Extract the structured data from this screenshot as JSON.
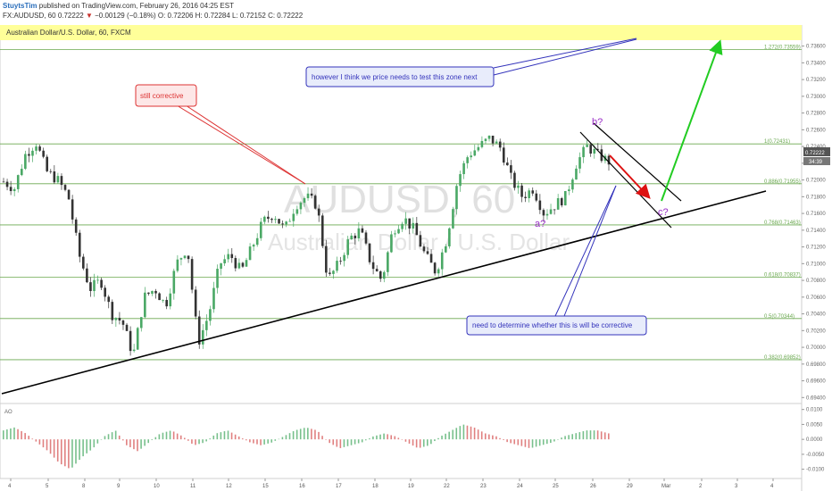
{
  "header": {
    "author": "StuytsTim",
    "published": "published on TradingView.com, February 26, 2016 04:25 EST",
    "symbol": "FX:AUDUSD, 60",
    "last": "0.72222",
    "arrow": "▼",
    "change": "−0.00129 (−0.18%)",
    "ohlc": "O: 0.72206  H: 0.72284  L: 0.72152  C: 0.72222"
  },
  "instrument_title": "Australian Dollar/U.S. Dollar, 60, FXCM",
  "watermark": {
    "line1": "AUDUSD, 60",
    "line2": "Australian Dollar / U.S. Dollar"
  },
  "price_tag": {
    "value": "0.72222",
    "time": "34:39"
  },
  "oscillator_label": "AO",
  "annotations": {
    "corrective": "still corrective",
    "test_zone": "however I think we price needs to test this zone next",
    "determine": "need to determine whether this is will be corrective"
  },
  "waves": {
    "a": "a?",
    "b": "b?",
    "c": "c?"
  },
  "colors": {
    "fib": "#6aa84f",
    "zone": "#ffff99",
    "trend": "#000000",
    "arrow_green": "#22cc22",
    "arrow_red": "#dd1111",
    "callout_blue": "#3333bb",
    "callout_red": "#dd3333",
    "candle_up": "#4aa865",
    "candle_down": "#333333",
    "osc_up": "#78c08c",
    "osc_down": "#e08080"
  },
  "chart_data": {
    "type": "candlestick",
    "title": "Australian Dollar/U.S. Dollar, 60, FXCM",
    "y_range": [
      0.6935,
      0.7366
    ],
    "y_ticks": [
      "0.73600",
      "0.73400",
      "0.73200",
      "0.73000",
      "0.72800",
      "0.72600",
      "0.72400",
      "0.72200",
      "0.72000",
      "0.71800",
      "0.71600",
      "0.71400",
      "0.71200",
      "0.71000",
      "0.70800",
      "0.70600",
      "0.70400",
      "0.70200",
      "0.70000",
      "0.69800",
      "0.69600",
      "0.69400"
    ],
    "x_ticks": [
      "4",
      "5",
      "8",
      "9",
      "10",
      "11",
      "12",
      "15",
      "16",
      "17",
      "18",
      "19",
      "22",
      "23",
      "24",
      "25",
      "26",
      "29",
      "Mar",
      "2",
      "3",
      "4"
    ],
    "fib_levels": [
      {
        "label": "1.272(0.73559)",
        "value": 0.73559
      },
      {
        "label": "1(0.72431)",
        "value": 0.72431
      },
      {
        "label": "0.886(0.71955)",
        "value": 0.71955
      },
      {
        "label": "0.768(0.71463)",
        "value": 0.71463
      },
      {
        "label": "0.618(0.70837)",
        "value": 0.70837
      },
      {
        "label": "0.5(0.70344)",
        "value": 0.70344
      },
      {
        "label": "0.382(0.69852)",
        "value": 0.69852
      }
    ],
    "price_path": [
      0.7198,
      0.719,
      0.723,
      0.7245,
      0.721,
      0.72,
      0.718,
      0.711,
      0.707,
      0.708,
      0.704,
      0.703,
      0.699,
      0.706,
      0.707,
      0.705,
      0.71,
      0.712,
      0.7005,
      0.704,
      0.71,
      0.711,
      0.709,
      0.712,
      0.715,
      0.716,
      0.714,
      0.717,
      0.718,
      0.717,
      0.708,
      0.71,
      0.713,
      0.714,
      0.71,
      0.708,
      0.714,
      0.7155,
      0.714,
      0.711,
      0.709,
      0.713,
      0.72,
      0.723,
      0.724,
      0.725,
      0.7238,
      0.72,
      0.718,
      0.719,
      0.716,
      0.717,
      0.718,
      0.722,
      0.724,
      0.723,
      0.7222
    ],
    "oscillator": {
      "y_ticks": [
        "0.0100",
        "0.0050",
        "0.0000",
        "-0.0050",
        "-0.0100"
      ],
      "y_range": [
        -0.0125,
        0.0108
      ],
      "values": [
        0.003,
        0.004,
        0.002,
        -0.001,
        -0.004,
        -0.008,
        -0.01,
        -0.006,
        -0.003,
        0.001,
        0.003,
        -0.002,
        -0.004,
        -0.001,
        0.002,
        0.003,
        0.001,
        -0.002,
        -0.001,
        0.002,
        0.003,
        0.001,
        -0.001,
        -0.002,
        -0.001,
        0.001,
        0.003,
        0.004,
        0.003,
        -0.001,
        -0.003,
        -0.002,
        -0.001,
        0.001,
        0.002,
        0.001,
        -0.001,
        -0.003,
        -0.002,
        0.001,
        0.003,
        0.005,
        0.004,
        0.002,
        0.001,
        -0.001,
        -0.002,
        -0.003,
        -0.002,
        -0.001,
        0.001,
        0.002,
        0.003,
        0.003,
        0.002
      ]
    }
  }
}
